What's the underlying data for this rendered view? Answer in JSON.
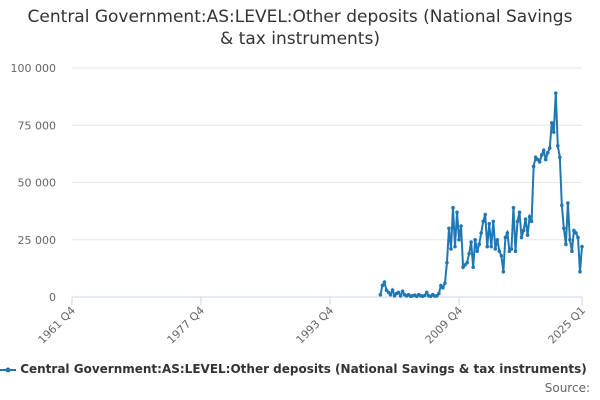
{
  "chart_data": {
    "type": "line",
    "title": "Central Government:AS:LEVEL:Other deposits (National Savings & tax instruments)",
    "source": "Source:",
    "categories": [
      "1961 Q4",
      null,
      null,
      null,
      null,
      null,
      null,
      null,
      null,
      null,
      null,
      null,
      null,
      null,
      null,
      null,
      null,
      null,
      null,
      null,
      null,
      null,
      null,
      null,
      null,
      null,
      null,
      null,
      null,
      null,
      null,
      null,
      null,
      null,
      null,
      null,
      null,
      null,
      null,
      null,
      null,
      null,
      null,
      null,
      null,
      null,
      null,
      null,
      null,
      null,
      null,
      null,
      null,
      null,
      null,
      null,
      null,
      null,
      null,
      null,
      null,
      null,
      null,
      null,
      "1977 Q4",
      null,
      null,
      null,
      null,
      null,
      null,
      null,
      null,
      null,
      null,
      null,
      null,
      null,
      null,
      null,
      null,
      null,
      null,
      null,
      null,
      null,
      null,
      null,
      null,
      null,
      null,
      null,
      null,
      null,
      null,
      null,
      null,
      null,
      null,
      null,
      null,
      null,
      null,
      null,
      null,
      null,
      null,
      null,
      null,
      null,
      null,
      null,
      null,
      null,
      null,
      null,
      null,
      null,
      null,
      null,
      null,
      null,
      null,
      null,
      null,
      null,
      null,
      null,
      "1993 Q4",
      null,
      null,
      null,
      null,
      null,
      null,
      null,
      null,
      null,
      null,
      null,
      null,
      null,
      null,
      null,
      null,
      null,
      null,
      null,
      null,
      null,
      null,
      null,
      null,
      null,
      null,
      null,
      null,
      null,
      null,
      null,
      null,
      null,
      null,
      null,
      null,
      null,
      null,
      null,
      null,
      null,
      null,
      null,
      null,
      null,
      null,
      null,
      null,
      null,
      null,
      null,
      null,
      null,
      null,
      null,
      null,
      null,
      null,
      null,
      null,
      null,
      null,
      null,
      "2009 Q4",
      null,
      null,
      null,
      null,
      null,
      null,
      null,
      null,
      null,
      null,
      null,
      null,
      null,
      null,
      null,
      null,
      null,
      null,
      null,
      null,
      null,
      null,
      null,
      null,
      null,
      null,
      null,
      null,
      null,
      null,
      null,
      null,
      null,
      null,
      null,
      null,
      null,
      null,
      null,
      null,
      null,
      null,
      null,
      null,
      null,
      null,
      null,
      null,
      null,
      null,
      null,
      null,
      null,
      null,
      null,
      null,
      null,
      null,
      null,
      null,
      "2025 Q1"
    ],
    "series": [
      {
        "name": "Central Government:AS:LEVEL:Other deposits (National Savings & tax instruments)",
        "color": "#1f77b4",
        "values": [
          null,
          null,
          null,
          null,
          null,
          null,
          null,
          null,
          null,
          null,
          null,
          null,
          null,
          null,
          null,
          null,
          null,
          null,
          null,
          null,
          null,
          null,
          null,
          null,
          null,
          null,
          null,
          null,
          null,
          null,
          null,
          null,
          null,
          null,
          null,
          null,
          null,
          null,
          null,
          null,
          null,
          null,
          null,
          null,
          null,
          null,
          null,
          null,
          null,
          null,
          null,
          null,
          null,
          null,
          null,
          null,
          null,
          null,
          null,
          null,
          null,
          null,
          null,
          null,
          null,
          null,
          null,
          null,
          null,
          null,
          null,
          null,
          null,
          null,
          null,
          null,
          null,
          null,
          null,
          null,
          null,
          null,
          null,
          null,
          null,
          null,
          null,
          null,
          null,
          null,
          null,
          null,
          null,
          null,
          null,
          null,
          null,
          null,
          null,
          null,
          null,
          null,
          null,
          null,
          null,
          null,
          null,
          null,
          null,
          null,
          null,
          null,
          null,
          null,
          null,
          null,
          null,
          null,
          null,
          null,
          null,
          null,
          null,
          null,
          null,
          null,
          null,
          null,
          null,
          null,
          null,
          null,
          null,
          null,
          null,
          null,
          null,
          null,
          null,
          null,
          null,
          null,
          null,
          null,
          null,
          null,
          null,
          null,
          null,
          null,
          null,
          null,
          null,
          1000,
          5000,
          6500,
          3000,
          2000,
          1000,
          3000,
          500,
          1500,
          2000,
          500,
          2500,
          1000,
          500,
          1000,
          300,
          500,
          800,
          300,
          1000,
          500,
          300,
          700,
          2000,
          500,
          300,
          1000,
          400,
          500,
          1500,
          5000,
          4000,
          6000,
          15000,
          30000,
          21000,
          39000,
          22000,
          37000,
          25000,
          31000,
          13000,
          14000,
          15000,
          19000,
          24000,
          13000,
          25000,
          20000,
          23000,
          28000,
          33000,
          36000,
          22000,
          32000,
          22000,
          33000,
          21000,
          25000,
          20000,
          18000,
          11000,
          26000,
          28000,
          20000,
          21000,
          39000,
          20000,
          33000,
          37000,
          26000,
          29000,
          34000,
          27000,
          35000,
          33000,
          57000,
          61000,
          60000,
          59000,
          62000,
          64000,
          60000,
          63000,
          65000,
          76000,
          72000,
          89000,
          66000,
          61000,
          40000,
          30000,
          23000,
          41000,
          25000,
          20000,
          29000,
          28000,
          26000,
          11000,
          22000
        ]
      }
    ],
    "ylim": [
      0,
      100000
    ],
    "yticks": [
      0,
      {
        "value": 25000,
        "label": "25 000"
      },
      {
        "value": 50000,
        "label": "50 000"
      },
      {
        "value": 75000,
        "label": "75 000"
      },
      {
        "value": 100000,
        "label": "100 000"
      }
    ],
    "grid": true
  }
}
